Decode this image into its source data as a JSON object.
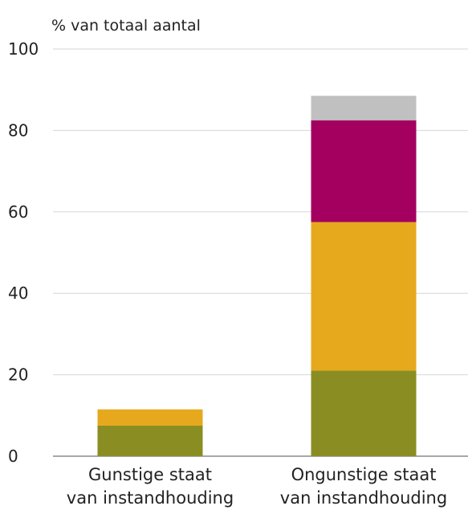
{
  "chart_data": {
    "type": "bar",
    "stacked": true,
    "ylabel": "% van totaal aantal",
    "xlabel": "",
    "ylim": [
      0,
      100
    ],
    "yticks": [
      0,
      20,
      40,
      60,
      80,
      100
    ],
    "grid": true,
    "categories": [
      [
        "Gunstige staat",
        "van instandhouding"
      ],
      [
        "Ongunstige staat",
        "van instandhouding"
      ]
    ],
    "series": [
      {
        "color": "#8a8e22",
        "values": [
          7.5,
          21
        ]
      },
      {
        "color": "#e6a91e",
        "values": [
          4,
          36.5
        ]
      },
      {
        "color": "#a3005f",
        "values": [
          0,
          25
        ]
      },
      {
        "color": "#c0c0c0",
        "values": [
          0,
          6
        ]
      }
    ]
  }
}
